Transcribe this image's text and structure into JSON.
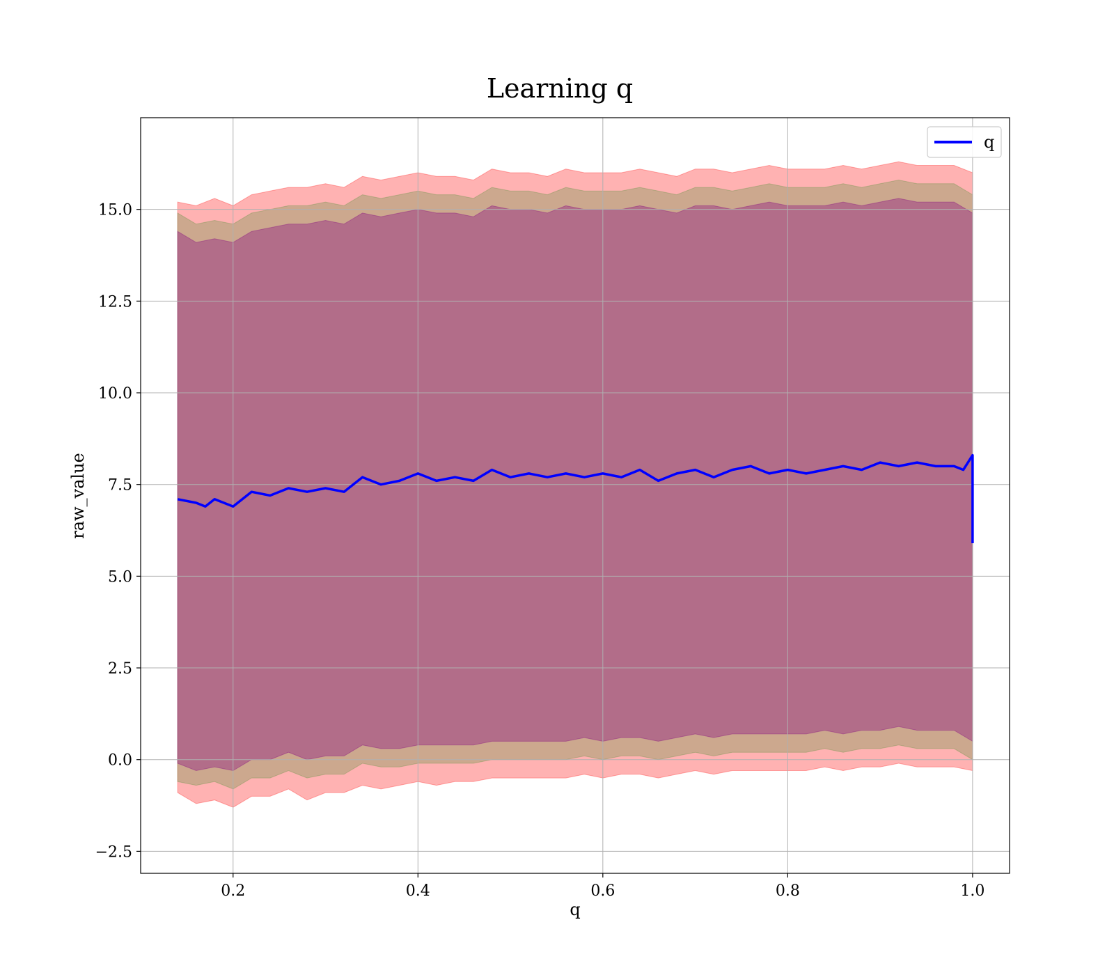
{
  "chart_data": {
    "type": "line",
    "title": "Learning q",
    "xlabel": "q",
    "ylabel": "raw_value",
    "xlim": [
      0.1,
      1.04
    ],
    "ylim": [
      -3.1,
      17.5
    ],
    "xticks": [
      0.2,
      0.4,
      0.6,
      0.8,
      1.0
    ],
    "xtick_labels": [
      "0.2",
      "0.4",
      "0.6",
      "0.8",
      "1.0"
    ],
    "yticks": [
      -2.5,
      0.0,
      2.5,
      5.0,
      7.5,
      10.0,
      12.5,
      15.0
    ],
    "ytick_labels": [
      "−2.5",
      "0.0",
      "2.5",
      "5.0",
      "7.5",
      "10.0",
      "12.5",
      "15.0"
    ],
    "grid": true,
    "legend": {
      "position": "upper right",
      "entries": [
        "q"
      ]
    },
    "series": [
      {
        "name": "q",
        "color": "#0000ff",
        "x": [
          0.14,
          0.16,
          0.17,
          0.18,
          0.2,
          0.22,
          0.24,
          0.26,
          0.28,
          0.3,
          0.32,
          0.34,
          0.36,
          0.38,
          0.4,
          0.42,
          0.44,
          0.46,
          0.48,
          0.5,
          0.52,
          0.54,
          0.56,
          0.58,
          0.6,
          0.62,
          0.64,
          0.66,
          0.68,
          0.7,
          0.72,
          0.74,
          0.76,
          0.78,
          0.8,
          0.82,
          0.84,
          0.86,
          0.88,
          0.9,
          0.92,
          0.94,
          0.96,
          0.98,
          0.99,
          1.0,
          1.0
        ],
        "y": [
          7.1,
          7.0,
          6.9,
          7.1,
          6.9,
          7.3,
          7.2,
          7.4,
          7.3,
          7.4,
          7.3,
          7.7,
          7.5,
          7.6,
          7.8,
          7.6,
          7.7,
          7.6,
          7.9,
          7.7,
          7.8,
          7.7,
          7.8,
          7.7,
          7.8,
          7.7,
          7.9,
          7.6,
          7.8,
          7.9,
          7.7,
          7.9,
          8.0,
          7.8,
          7.9,
          7.8,
          7.9,
          8.0,
          7.9,
          8.1,
          8.0,
          8.1,
          8.0,
          8.0,
          7.9,
          8.3,
          5.9
        ]
      }
    ],
    "bands": [
      {
        "color": "#ff0000",
        "opacity": 0.3,
        "x": [
          0.14,
          0.16,
          0.18,
          0.2,
          0.22,
          0.24,
          0.26,
          0.28,
          0.3,
          0.32,
          0.34,
          0.36,
          0.38,
          0.4,
          0.42,
          0.44,
          0.46,
          0.48,
          0.5,
          0.52,
          0.54,
          0.56,
          0.58,
          0.6,
          0.62,
          0.64,
          0.66,
          0.68,
          0.7,
          0.72,
          0.74,
          0.76,
          0.78,
          0.8,
          0.82,
          0.84,
          0.86,
          0.88,
          0.9,
          0.92,
          0.94,
          0.96,
          0.98,
          1.0
        ],
        "lower": [
          -0.9,
          -1.2,
          -1.1,
          -1.3,
          -1.0,
          -1.0,
          -0.8,
          -1.1,
          -0.9,
          -0.9,
          -0.7,
          -0.8,
          -0.7,
          -0.6,
          -0.7,
          -0.6,
          -0.6,
          -0.5,
          -0.5,
          -0.5,
          -0.5,
          -0.5,
          -0.4,
          -0.5,
          -0.4,
          -0.4,
          -0.5,
          -0.4,
          -0.3,
          -0.4,
          -0.3,
          -0.3,
          -0.3,
          -0.3,
          -0.3,
          -0.2,
          -0.3,
          -0.2,
          -0.2,
          -0.1,
          -0.2,
          -0.2,
          -0.2,
          -0.3
        ],
        "upper": [
          15.2,
          15.1,
          15.3,
          15.1,
          15.4,
          15.5,
          15.6,
          15.6,
          15.7,
          15.6,
          15.9,
          15.8,
          15.9,
          16.0,
          15.9,
          15.9,
          15.8,
          16.1,
          16.0,
          16.0,
          15.9,
          16.1,
          16.0,
          16.0,
          16.0,
          16.1,
          16.0,
          15.9,
          16.1,
          16.1,
          16.0,
          16.1,
          16.2,
          16.1,
          16.1,
          16.1,
          16.2,
          16.1,
          16.2,
          16.3,
          16.2,
          16.2,
          16.2,
          16.0
        ]
      },
      {
        "color": "#008000",
        "opacity": 0.2,
        "x": [
          0.14,
          0.16,
          0.18,
          0.2,
          0.22,
          0.24,
          0.26,
          0.28,
          0.3,
          0.32,
          0.34,
          0.36,
          0.38,
          0.4,
          0.42,
          0.44,
          0.46,
          0.48,
          0.5,
          0.52,
          0.54,
          0.56,
          0.58,
          0.6,
          0.62,
          0.64,
          0.66,
          0.68,
          0.7,
          0.72,
          0.74,
          0.76,
          0.78,
          0.8,
          0.82,
          0.84,
          0.86,
          0.88,
          0.9,
          0.92,
          0.94,
          0.96,
          0.98,
          1.0
        ],
        "lower": [
          -0.6,
          -0.7,
          -0.6,
          -0.8,
          -0.5,
          -0.5,
          -0.3,
          -0.5,
          -0.4,
          -0.4,
          -0.1,
          -0.2,
          -0.2,
          -0.1,
          -0.1,
          -0.1,
          -0.1,
          0.0,
          0.0,
          0.0,
          0.0,
          0.0,
          0.1,
          0.0,
          0.1,
          0.1,
          0.0,
          0.1,
          0.2,
          0.1,
          0.2,
          0.2,
          0.2,
          0.2,
          0.2,
          0.3,
          0.2,
          0.3,
          0.3,
          0.4,
          0.3,
          0.3,
          0.3,
          0.0
        ],
        "upper": [
          14.9,
          14.6,
          14.7,
          14.6,
          14.9,
          15.0,
          15.1,
          15.1,
          15.2,
          15.1,
          15.4,
          15.3,
          15.4,
          15.5,
          15.4,
          15.4,
          15.3,
          15.6,
          15.5,
          15.5,
          15.4,
          15.6,
          15.5,
          15.5,
          15.5,
          15.6,
          15.5,
          15.4,
          15.6,
          15.6,
          15.5,
          15.6,
          15.7,
          15.6,
          15.6,
          15.6,
          15.7,
          15.6,
          15.7,
          15.8,
          15.7,
          15.7,
          15.7,
          15.4
        ]
      },
      {
        "color": "#800080",
        "opacity": 0.35,
        "x": [
          0.14,
          0.16,
          0.18,
          0.2,
          0.22,
          0.24,
          0.26,
          0.28,
          0.3,
          0.32,
          0.34,
          0.36,
          0.38,
          0.4,
          0.42,
          0.44,
          0.46,
          0.48,
          0.5,
          0.52,
          0.54,
          0.56,
          0.58,
          0.6,
          0.62,
          0.64,
          0.66,
          0.68,
          0.7,
          0.72,
          0.74,
          0.76,
          0.78,
          0.8,
          0.82,
          0.84,
          0.86,
          0.88,
          0.9,
          0.92,
          0.94,
          0.96,
          0.98,
          1.0
        ],
        "lower": [
          -0.1,
          -0.3,
          -0.2,
          -0.3,
          0.0,
          0.0,
          0.2,
          0.0,
          0.1,
          0.1,
          0.4,
          0.3,
          0.3,
          0.4,
          0.4,
          0.4,
          0.4,
          0.5,
          0.5,
          0.5,
          0.5,
          0.5,
          0.6,
          0.5,
          0.6,
          0.6,
          0.5,
          0.6,
          0.7,
          0.6,
          0.7,
          0.7,
          0.7,
          0.7,
          0.7,
          0.8,
          0.7,
          0.8,
          0.8,
          0.9,
          0.8,
          0.8,
          0.8,
          0.5
        ],
        "upper": [
          14.4,
          14.1,
          14.2,
          14.1,
          14.4,
          14.5,
          14.6,
          14.6,
          14.7,
          14.6,
          14.9,
          14.8,
          14.9,
          15.0,
          14.9,
          14.9,
          14.8,
          15.1,
          15.0,
          15.0,
          14.9,
          15.1,
          15.0,
          15.0,
          15.0,
          15.1,
          15.0,
          14.9,
          15.1,
          15.1,
          15.0,
          15.1,
          15.2,
          15.1,
          15.1,
          15.1,
          15.2,
          15.1,
          15.2,
          15.3,
          15.2,
          15.2,
          15.2,
          14.9
        ]
      }
    ]
  }
}
